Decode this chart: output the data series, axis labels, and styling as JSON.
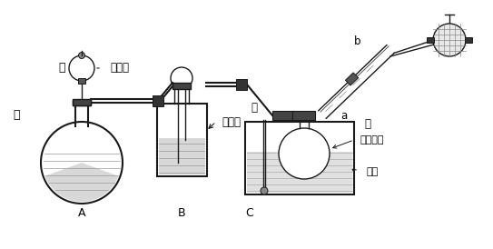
{
  "bg_color": "#ffffff",
  "line_color": "#1a1a1a",
  "fill_color": "#d0d0d0",
  "liquid_color": "#c8c8c8",
  "labels": {
    "jia": "甲",
    "nong_yan_suan": "浓盐酸",
    "yi": "乙",
    "nong_liu_suan": "浓硫酸",
    "A": "A",
    "B": "B",
    "C": "C",
    "ding": "丁",
    "bing": "丙",
    "a": "a",
    "b": "b",
    "fa_yan_liu_suan": "发烟硫酸",
    "shui_yu": "水浴"
  },
  "figsize": [
    5.43,
    2.74
  ],
  "dpi": 100
}
